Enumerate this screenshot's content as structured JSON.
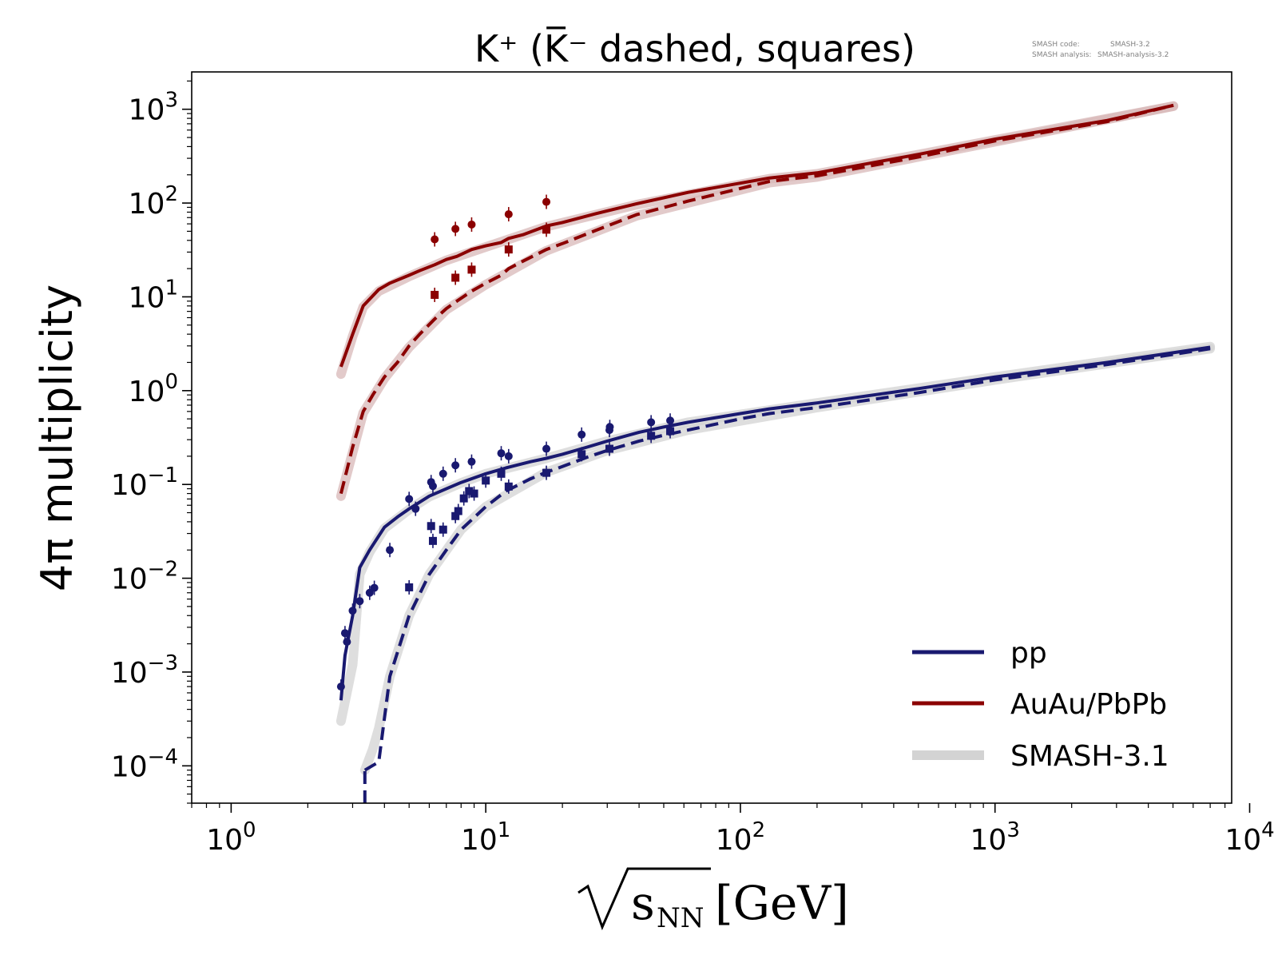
{
  "chart_data": {
    "type": "line",
    "title": "K⁺ (K̅⁻ dashed, squares)",
    "xlabel": {
      "radical": "√",
      "var": "s",
      "sub": "NN",
      "unit": "[GeV]"
    },
    "ylabel": "4π multiplicity",
    "x_scale": "log",
    "y_scale": "log",
    "xlim": [
      0.7,
      8500
    ],
    "ylim": [
      4e-05,
      2500
    ],
    "x_ticks": [
      {
        "value": 1,
        "base": "10",
        "exp": "0"
      },
      {
        "value": 10,
        "base": "10",
        "exp": "1"
      },
      {
        "value": 100,
        "base": "10",
        "exp": "2"
      },
      {
        "value": 1000,
        "base": "10",
        "exp": "3"
      },
      {
        "value": 10000,
        "base": "10",
        "exp": "4"
      }
    ],
    "y_ticks": [
      {
        "value": 0.0001,
        "base": "10",
        "exp": "−4"
      },
      {
        "value": 0.001,
        "base": "10",
        "exp": "−3"
      },
      {
        "value": 0.01,
        "base": "10",
        "exp": "−2"
      },
      {
        "value": 0.1,
        "base": "10",
        "exp": "−1"
      },
      {
        "value": 1,
        "base": "10",
        "exp": "0"
      },
      {
        "value": 10,
        "base": "10",
        "exp": "1"
      },
      {
        "value": 100,
        "base": "10",
        "exp": "2"
      },
      {
        "value": 1000,
        "base": "10",
        "exp": "3"
      }
    ],
    "code_info": [
      {
        "label": "SMASH code:",
        "value": "SMASH-3.2"
      },
      {
        "label": "SMASH analysis:",
        "value": "SMASH-analysis-3.2"
      }
    ],
    "legend": {
      "position": "lower-right",
      "entries": [
        {
          "label": "pp",
          "color": "#191970",
          "style": "solid"
        },
        {
          "label": "AuAu/PbPb",
          "color": "#8b0000",
          "style": "solid"
        },
        {
          "label": "SMASH-3.1",
          "color": "#d3d3d3",
          "style": "band"
        }
      ]
    },
    "series": [
      {
        "system": "pp",
        "particle": "K+",
        "style": "solid",
        "color": "#191970",
        "x": [
          2.7,
          2.8,
          3.0,
          3.2,
          3.5,
          4.0,
          4.5,
          5.0,
          6.0,
          7.0,
          8.0,
          10.0,
          12.0,
          15.0,
          17.3,
          20.0,
          25.0,
          30.0,
          40.0,
          50.0,
          62.4,
          100,
          130,
          200,
          500,
          1000,
          2760,
          7000
        ],
        "y": [
          0.0005,
          0.0015,
          0.004,
          0.013,
          0.02,
          0.035,
          0.045,
          0.055,
          0.075,
          0.09,
          0.105,
          0.13,
          0.15,
          0.175,
          0.19,
          0.21,
          0.25,
          0.29,
          0.36,
          0.41,
          0.46,
          0.57,
          0.64,
          0.74,
          1.05,
          1.4,
          2.0,
          2.9
        ]
      },
      {
        "system": "pp",
        "particle": "K-",
        "style": "dashed",
        "color": "#191970",
        "x": [
          3.35,
          3.8,
          4.2,
          5.0,
          6.0,
          7.0,
          8.0,
          10.0,
          12.0,
          15.0,
          17.3,
          20.0,
          25.0,
          30.0,
          40.0,
          50.0,
          62.4,
          100,
          130,
          200,
          500,
          1000,
          2760,
          7000
        ],
        "y": [
          9e-05,
          0.00011,
          0.0009,
          0.004,
          0.011,
          0.02,
          0.033,
          0.058,
          0.085,
          0.115,
          0.135,
          0.155,
          0.195,
          0.23,
          0.29,
          0.335,
          0.38,
          0.5,
          0.57,
          0.66,
          0.95,
          1.3,
          1.9,
          2.8
        ]
      },
      {
        "system": "pp",
        "particle": "K-",
        "style": "dashed-start",
        "color": "#191970",
        "x": [
          3.35,
          3.35
        ],
        "y": [
          4e-05,
          9e-05
        ]
      },
      {
        "system": "AuAu/PbPb",
        "particle": "K+",
        "style": "solid",
        "color": "#8b0000",
        "x": [
          2.7,
          3.0,
          3.3,
          3.8,
          4.2,
          5.0,
          5.5,
          6.3,
          7.0,
          7.7,
          8.8,
          10.0,
          11.5,
          12.3,
          14.0,
          17.3,
          20.0,
          27.0,
          39.0,
          62.4,
          130,
          200,
          500,
          1000,
          2760,
          5020
        ],
        "y": [
          1.8,
          4.0,
          8.0,
          12.0,
          14.0,
          17.0,
          19.0,
          22.0,
          25.0,
          27.0,
          32.0,
          35.0,
          38.0,
          42.0,
          46.0,
          57.0,
          62.0,
          77.0,
          98.0,
          130.0,
          185.0,
          210.0,
          330.0,
          480.0,
          760.0,
          1100.0
        ]
      },
      {
        "system": "AuAu/PbPb",
        "particle": "K-",
        "style": "dashed",
        "color": "#8b0000",
        "x": [
          2.7,
          3.0,
          3.3,
          3.6,
          4.0,
          4.5,
          5.0,
          5.5,
          6.3,
          7.0,
          7.7,
          8.8,
          10.0,
          11.5,
          12.3,
          14.0,
          17.3,
          20.0,
          27.0,
          39.0,
          62.4,
          130,
          200,
          500,
          1000,
          2760,
          5020
        ],
        "y": [
          0.08,
          0.25,
          0.6,
          0.9,
          1.4,
          2.0,
          3.0,
          4.0,
          5.8,
          7.5,
          9.0,
          11.5,
          14.0,
          17.0,
          20.0,
          24.0,
          32.0,
          37.0,
          51.0,
          75.0,
          105.0,
          170.0,
          195.0,
          310.0,
          460.0,
          740.0,
          1100.0
        ]
      },
      {
        "system": "SMASH-3.1",
        "particle": "K+",
        "style": "band",
        "color": "#d3d3d3",
        "x": [
          2.7,
          3.0,
          3.2,
          3.5,
          4.0,
          5.0,
          6.0,
          8.0,
          10.0,
          17.3,
          30.0,
          62.4,
          200,
          1000,
          7000
        ],
        "y": [
          0.0003,
          0.0012,
          0.011,
          0.019,
          0.034,
          0.054,
          0.074,
          0.104,
          0.13,
          0.19,
          0.29,
          0.46,
          0.74,
          1.4,
          2.95
        ]
      },
      {
        "system": "SMASH-3.1",
        "particle": "K-",
        "style": "band",
        "color": "#d3d3d3",
        "x": [
          3.35,
          3.6,
          3.8,
          4.2,
          5.0,
          6.0,
          8.0,
          10.0,
          17.3,
          30.0,
          62.4,
          200,
          1000,
          7000
        ],
        "y": [
          9e-05,
          0.00015,
          0.00025,
          0.0009,
          0.004,
          0.011,
          0.033,
          0.058,
          0.135,
          0.23,
          0.38,
          0.66,
          1.3,
          2.8
        ]
      },
      {
        "system": "SMASH-3.1",
        "particle": "AA K+",
        "style": "band",
        "color": "#d8b8b8",
        "x": [
          2.7,
          3.0,
          3.3,
          3.8,
          5.0,
          7.0,
          10.0,
          17.3,
          39.0,
          130,
          200,
          1000,
          5020
        ],
        "y": [
          1.5,
          3.8,
          7.8,
          11.5,
          16.5,
          24.5,
          34.0,
          56.0,
          96.0,
          182.0,
          205.0,
          470.0,
          1080.0
        ]
      },
      {
        "system": "SMASH-3.1",
        "particle": "AA K-",
        "style": "band",
        "color": "#d8b8b8",
        "x": [
          2.7,
          3.3,
          4.0,
          5.0,
          7.0,
          10.0,
          17.3,
          39.0,
          130,
          200,
          1000,
          5020
        ],
        "y": [
          0.075,
          0.58,
          1.35,
          2.9,
          7.3,
          13.5,
          31.0,
          73.0,
          165.0,
          190.0,
          450.0,
          1080.0
        ]
      }
    ],
    "markers": [
      {
        "system": "AuAu/PbPb",
        "particle": "K+",
        "shape": "circle",
        "color": "#8b0000",
        "x": [
          6.3,
          7.6,
          8.8,
          12.3,
          17.3
        ],
        "y": [
          41,
          53,
          59,
          76,
          103
        ]
      },
      {
        "system": "AuAu/PbPb",
        "particle": "K-",
        "shape": "square",
        "color": "#8b0000",
        "x": [
          6.3,
          7.6,
          8.8,
          12.3,
          17.3
        ],
        "y": [
          10.5,
          16,
          19.5,
          32,
          52
        ]
      },
      {
        "system": "pp",
        "particle": "K+",
        "shape": "circle",
        "color": "#191970",
        "x": [
          2.7,
          2.8,
          2.85,
          3.0,
          3.2,
          3.5,
          3.65,
          4.2,
          5.0,
          5.3,
          6.1,
          6.2,
          6.8,
          7.6,
          8.8,
          11.5,
          12.3,
          17.3,
          23.8,
          30.6,
          30.7,
          44.6,
          53.0
        ],
        "y": [
          0.0007,
          0.0026,
          0.0021,
          0.0045,
          0.0057,
          0.007,
          0.0079,
          0.02,
          0.07,
          0.055,
          0.106,
          0.096,
          0.13,
          0.16,
          0.175,
          0.215,
          0.2,
          0.24,
          0.34,
          0.38,
          0.41,
          0.46,
          0.48
        ]
      },
      {
        "system": "pp",
        "particle": "K-",
        "shape": "square",
        "color": "#191970",
        "x": [
          5.0,
          6.1,
          6.2,
          6.8,
          7.6,
          7.8,
          8.2,
          8.6,
          9.0,
          10.0,
          11.5,
          12.3,
          17.3,
          23.8,
          30.6,
          44.6,
          53.0
        ],
        "y": [
          0.008,
          0.036,
          0.025,
          0.033,
          0.046,
          0.052,
          0.071,
          0.085,
          0.08,
          0.11,
          0.13,
          0.095,
          0.133,
          0.21,
          0.24,
          0.33,
          0.37
        ]
      }
    ]
  }
}
